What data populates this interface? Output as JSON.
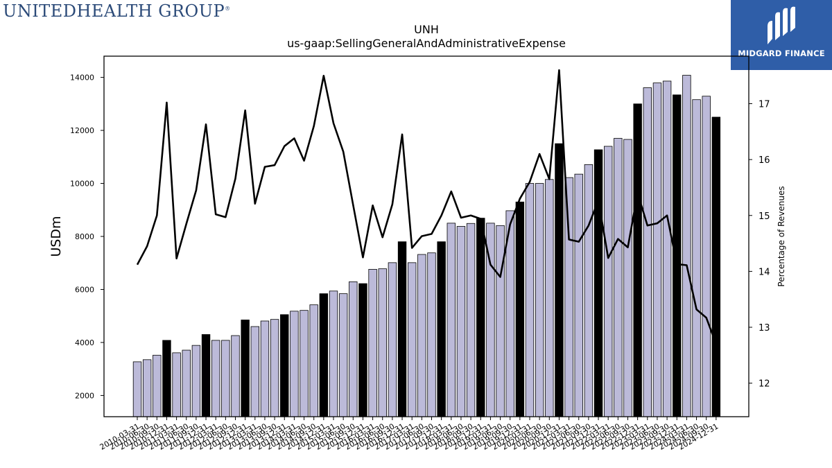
{
  "header": {
    "logo_left_text": "UNITEDHEALTH GROUP",
    "logo_left_mark": "®",
    "logo_right_text": "MIDGARD FINANCE",
    "logo_right_icon": "midgard-logo-icon"
  },
  "chart_data": {
    "type": "bar",
    "title": "UNH",
    "subtitle": "us-gaap:SellingGeneralAndAdministrativeExpense",
    "ylabel": "USDm",
    "y2label": "Percentage of Revenues",
    "ylim": [
      1200,
      14800
    ],
    "y2lim": [
      11.4,
      17.85
    ],
    "yticks": [
      2000,
      4000,
      6000,
      8000,
      10000,
      12000,
      14000
    ],
    "y2ticks": [
      12,
      13,
      14,
      15,
      16,
      17
    ],
    "colors": {
      "quarter_bar": "#bcbad9",
      "annual_bar": "#000000",
      "line": "#000000"
    },
    "categories": [
      "2010-03-31",
      "2010-06-30",
      "2010-09-30",
      "2010-12-31",
      "2011-03-31",
      "2011-06-30",
      "2011-09-30",
      "2011-12-31",
      "2012-03-31",
      "2012-06-30",
      "2012-09-30",
      "2012-12-31",
      "2013-03-31",
      "2013-06-30",
      "2013-09-30",
      "2013-12-31",
      "2014-03-31",
      "2014-06-30",
      "2014-09-30",
      "2014-12-31",
      "2015-03-31",
      "2015-06-30",
      "2015-09-30",
      "2015-12-31",
      "2016-03-31",
      "2016-06-30",
      "2016-09-30",
      "2016-12-31",
      "2017-03-31",
      "2017-06-30",
      "2017-09-30",
      "2017-12-31",
      "2018-03-31",
      "2018-06-30",
      "2018-09-30",
      "2018-12-31",
      "2019-03-31",
      "2019-06-30",
      "2019-09-30",
      "2019-12-31",
      "2020-03-31",
      "2020-06-30",
      "2020-09-30",
      "2020-12-31",
      "2021-03-31",
      "2021-06-30",
      "2021-09-30",
      "2021-12-31",
      "2022-03-31",
      "2022-06-30",
      "2022-09-30",
      "2022-12-31",
      "2023-03-31",
      "2023-06-30",
      "2023-09-30",
      "2023-12-31",
      "2024-03-31",
      "2024-06-30",
      "2024-09-30",
      "2024-12-31"
    ],
    "series": [
      {
        "name": "",
        "kind": "bar",
        "annual_flags": [
          false,
          false,
          false,
          true,
          false,
          false,
          false,
          true,
          false,
          false,
          false,
          true,
          false,
          false,
          false,
          true,
          false,
          false,
          false,
          true,
          false,
          false,
          false,
          true,
          false,
          false,
          false,
          true,
          false,
          false,
          false,
          true,
          false,
          false,
          false,
          true,
          false,
          false,
          false,
          true,
          false,
          false,
          false,
          true,
          false,
          false,
          false,
          true,
          false,
          false,
          false,
          true,
          false,
          false,
          false,
          true,
          false,
          false,
          false,
          true
        ],
        "values": [
          3270,
          3350,
          3520,
          4080,
          3610,
          3710,
          3890,
          4300,
          4080,
          4080,
          4260,
          4850,
          4600,
          4810,
          4870,
          5050,
          5180,
          5210,
          5420,
          5840,
          5940,
          5840,
          6290,
          6220,
          6760,
          6780,
          7010,
          7800,
          7010,
          7320,
          7380,
          7800,
          8500,
          8380,
          8490,
          8690,
          8500,
          8410,
          8970,
          9300,
          10000,
          10000,
          10150,
          11500,
          10220,
          10350,
          10710,
          11270,
          11400,
          11700,
          11660,
          13000,
          13610,
          13790,
          13860,
          13340,
          14080,
          13160,
          13290,
          12500
        ]
      },
      {
        "name": "",
        "kind": "line",
        "axis": "y2",
        "values": [
          14.12,
          14.45,
          15.0,
          17.02,
          14.23,
          14.85,
          15.45,
          16.63,
          15.02,
          14.97,
          15.66,
          16.88,
          15.21,
          15.87,
          15.9,
          16.24,
          16.38,
          15.98,
          16.6,
          17.5,
          16.65,
          16.14,
          15.19,
          14.25,
          15.18,
          14.61,
          15.2,
          16.45,
          14.42,
          14.63,
          14.67,
          15.0,
          15.43,
          14.96,
          15.0,
          14.94,
          14.12,
          13.9,
          14.84,
          15.3,
          15.6,
          16.1,
          15.65,
          17.6,
          14.57,
          14.53,
          14.82,
          15.27,
          14.24,
          14.58,
          14.43,
          15.4,
          14.82,
          14.86,
          15.0,
          14.13,
          14.11,
          13.32,
          13.17,
          12.7
        ]
      }
    ]
  }
}
